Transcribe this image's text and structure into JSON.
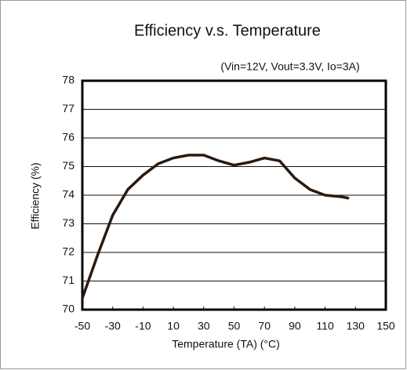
{
  "chart_data": {
    "type": "line",
    "title": "Efficiency v.s. Temperature",
    "subtitle": "(Vin=12V, Vout=3.3V, Io=3A)",
    "x_label": "Temperature (TA)   (°C)",
    "y_label": "Efficiency  (%)",
    "x": [
      -50,
      -40,
      -30,
      -20,
      -10,
      0,
      10,
      20,
      30,
      40,
      50,
      60,
      70,
      80,
      90,
      100,
      110,
      120,
      125
    ],
    "series": [
      {
        "name": "Efficiency",
        "color": "#2b1a10",
        "values": [
          70.4,
          71.9,
          73.3,
          74.2,
          74.7,
          75.1,
          75.3,
          75.4,
          75.4,
          75.2,
          75.05,
          75.15,
          75.3,
          75.2,
          74.6,
          74.2,
          74.0,
          73.95,
          73.9
        ]
      }
    ],
    "xlim": [
      -50,
      150
    ],
    "xticks": [
      -50,
      -30,
      -10,
      10,
      30,
      50,
      70,
      90,
      110,
      130,
      150
    ],
    "ylim": [
      70,
      78
    ],
    "yticks": [
      70,
      71,
      72,
      73,
      74,
      75,
      76,
      77,
      78
    ],
    "grid": true
  }
}
